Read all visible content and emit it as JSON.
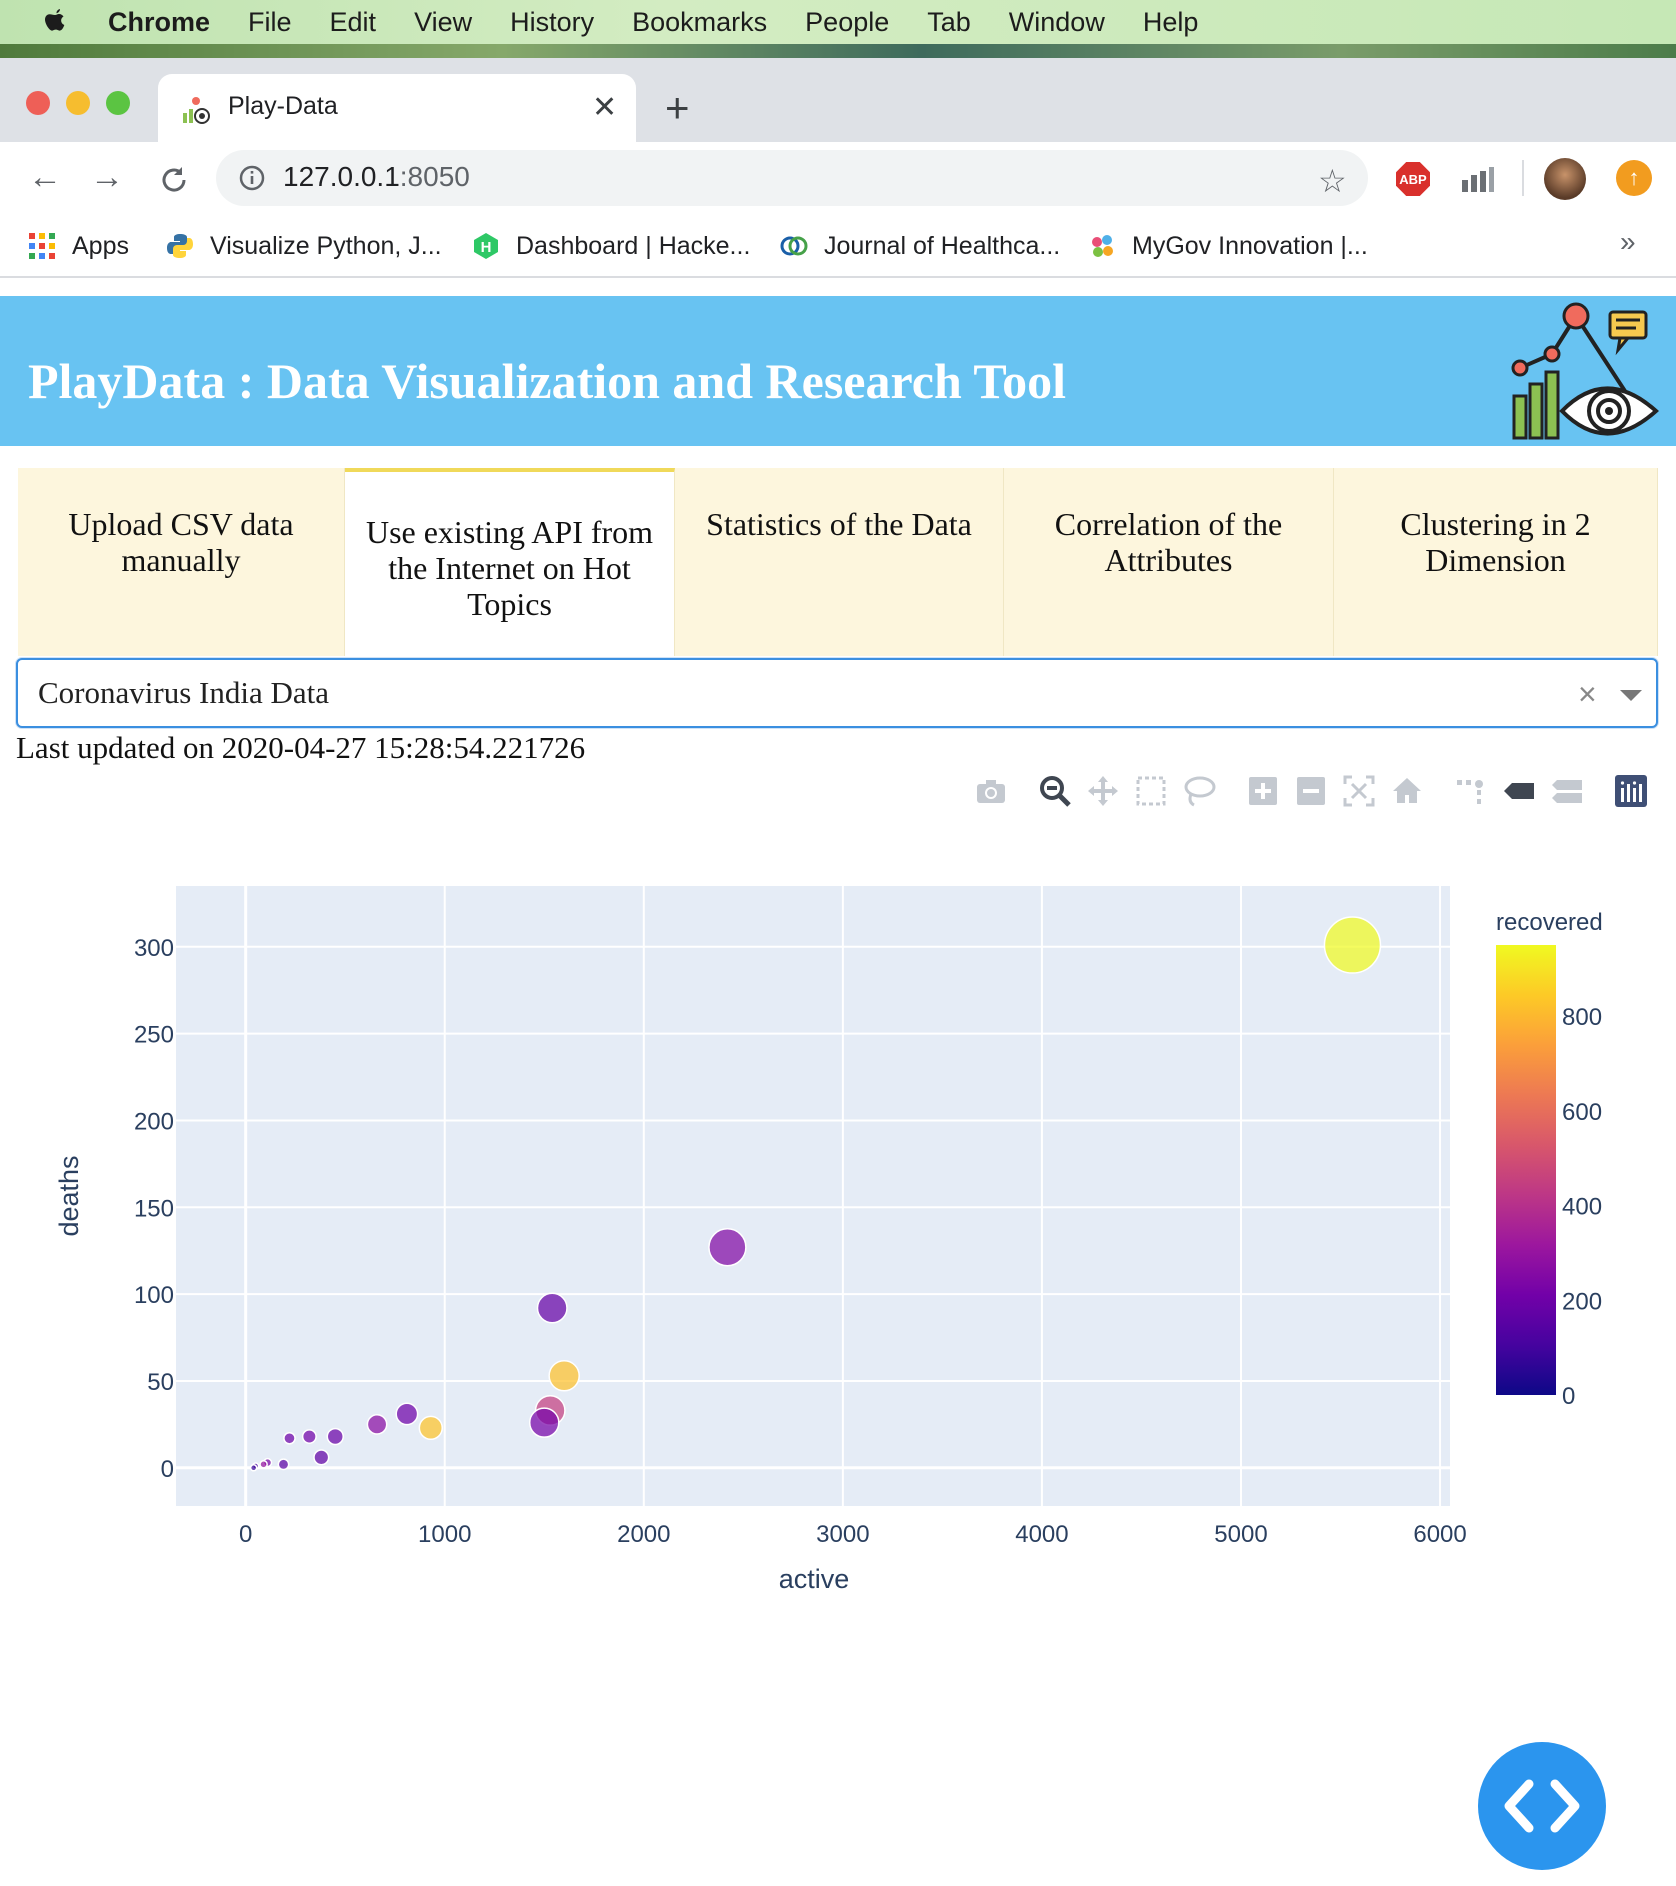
{
  "menubar": {
    "app": "Chrome",
    "items": [
      "File",
      "Edit",
      "View",
      "History",
      "Bookmarks",
      "People",
      "Tab",
      "Window",
      "Help"
    ]
  },
  "browser": {
    "tab_title": "Play-Data",
    "url_host": "127.0.0.1",
    "url_port": ":8050",
    "abp_label": "ABP",
    "bookmarks": [
      {
        "label": "Apps",
        "icon": "apps-grid-icon"
      },
      {
        "label": "Visualize Python, J...",
        "icon": "python-icon"
      },
      {
        "label": "Dashboard | Hacke...",
        "icon": "hackerrank-icon"
      },
      {
        "label": "Journal of Healthca...",
        "icon": "journal-icon"
      },
      {
        "label": "MyGov Innovation |...",
        "icon": "mygov-icon"
      }
    ],
    "more": "»"
  },
  "app": {
    "title": "PlayData : Data Visualization and Research Tool",
    "tabs": [
      {
        "label": "Upload CSV data manually",
        "active": false
      },
      {
        "label": "Use existing API from the Internet on Hot Topics",
        "active": true
      },
      {
        "label": "Statistics of the Data",
        "active": false
      },
      {
        "label": "Correlation of the Attributes",
        "active": false
      },
      {
        "label": "Clustering in 2 Dimension",
        "active": false
      }
    ],
    "dropdown": {
      "value": "Coronavirus India Data",
      "clear": "×"
    },
    "last_updated": "Last updated on 2020-04-27 15:28:54.221726"
  },
  "modebar": [
    "camera-icon",
    "zoom-icon",
    "pan-icon",
    "box-select-icon",
    "lasso-icon",
    "zoom-in-icon",
    "zoom-out-icon",
    "autoscale-icon",
    "reset-axes-icon",
    "spike-lines-icon",
    "hover-closest-icon",
    "hover-compare-icon",
    "plotly-logo-icon"
  ],
  "chart_data": {
    "type": "scatter",
    "xlabel": "active",
    "ylabel": "deaths",
    "xlim": [
      -350,
      6050
    ],
    "ylim": [
      -22,
      335
    ],
    "xticks": [
      "0",
      "1000",
      "2000",
      "3000",
      "4000",
      "5000",
      "6000"
    ],
    "yticks": [
      "0",
      "50",
      "100",
      "150",
      "200",
      "250",
      "300"
    ],
    "color_label": "recovered",
    "color_range": [
      0,
      950
    ],
    "colorbar_ticks": [
      "0",
      "200",
      "400",
      "600",
      "800"
    ],
    "colorscale": [
      "#0d0887",
      "#46039f",
      "#7201a8",
      "#9c179e",
      "#bd3786",
      "#d8576b",
      "#ed7953",
      "#fb9f3a",
      "#fdca26",
      "#f0f921"
    ],
    "points": [
      {
        "x": 5560,
        "y": 301,
        "recovered": 950
      },
      {
        "x": 2420,
        "y": 127,
        "recovered": 250
      },
      {
        "x": 1540,
        "y": 92,
        "recovered": 180
      },
      {
        "x": 1600,
        "y": 53,
        "recovered": 820
      },
      {
        "x": 1530,
        "y": 33,
        "recovered": 450
      },
      {
        "x": 1500,
        "y": 26,
        "recovered": 220
      },
      {
        "x": 930,
        "y": 23,
        "recovered": 830
      },
      {
        "x": 810,
        "y": 31,
        "recovered": 200
      },
      {
        "x": 660,
        "y": 25,
        "recovered": 270
      },
      {
        "x": 450,
        "y": 18,
        "recovered": 190
      },
      {
        "x": 320,
        "y": 18,
        "recovered": 210
      },
      {
        "x": 220,
        "y": 17,
        "recovered": 200
      },
      {
        "x": 380,
        "y": 6,
        "recovered": 170
      },
      {
        "x": 190,
        "y": 2,
        "recovered": 160
      },
      {
        "x": 110,
        "y": 3,
        "recovered": 230
      },
      {
        "x": 90,
        "y": 2,
        "recovered": 300
      },
      {
        "x": 50,
        "y": 1,
        "recovered": 120
      },
      {
        "x": 40,
        "y": 0,
        "recovered": 80
      }
    ]
  }
}
